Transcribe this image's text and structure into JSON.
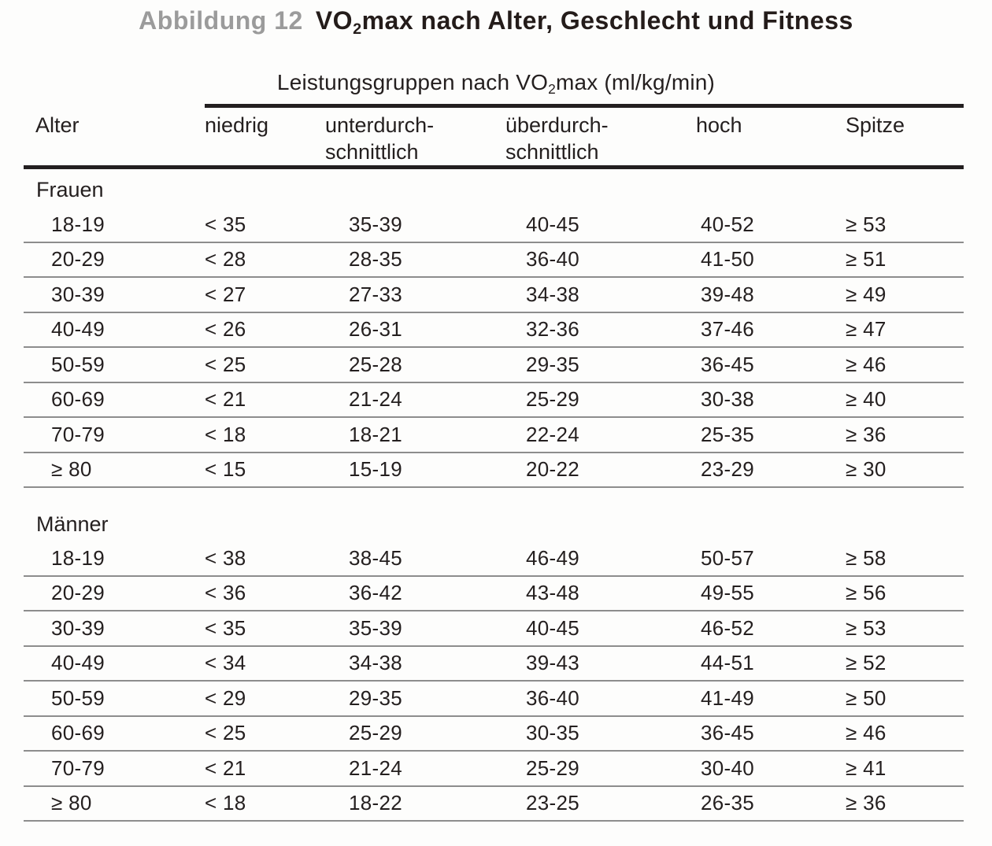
{
  "title": {
    "figure_label": "Abbildung 12",
    "text_pre": "VO",
    "text_sub": "2",
    "text_post": "max nach Alter, Geschlecht und Fitness"
  },
  "span_header": {
    "pre": "Leistungsgruppen nach VO",
    "sub": "2",
    "post": "max (ml/kg/min)"
  },
  "columns": [
    {
      "line1": "Alter",
      "line2": ""
    },
    {
      "line1": "niedrig",
      "line2": ""
    },
    {
      "line1": "unterdurch-",
      "line2": "schnittlich"
    },
    {
      "line1": "überdurch-",
      "line2": "schnittlich"
    },
    {
      "line1": "hoch",
      "line2": ""
    },
    {
      "line1": "Spitze",
      "line2": ""
    }
  ],
  "sections": [
    {
      "label": "Frauen",
      "rows": [
        [
          "18-19",
          "< 35",
          "35-39",
          "40-45",
          "40-52",
          "≥ 53"
        ],
        [
          "20-29",
          "< 28",
          "28-35",
          "36-40",
          "41-50",
          "≥ 51"
        ],
        [
          "30-39",
          "< 27",
          "27-33",
          "34-38",
          "39-48",
          "≥ 49"
        ],
        [
          "40-49",
          "< 26",
          "26-31",
          "32-36",
          "37-46",
          "≥ 47"
        ],
        [
          "50-59",
          "< 25",
          "25-28",
          "29-35",
          "36-45",
          "≥ 46"
        ],
        [
          "60-69",
          "< 21",
          "21-24",
          "25-29",
          "30-38",
          "≥ 40"
        ],
        [
          "70-79",
          "< 18",
          "18-21",
          "22-24",
          "25-35",
          "≥ 36"
        ],
        [
          "≥ 80",
          "< 15",
          "15-19",
          "20-22",
          "23-29",
          "≥ 30"
        ]
      ]
    },
    {
      "label": "Männer",
      "rows": [
        [
          "18-19",
          "< 38",
          "38-45",
          "46-49",
          "50-57",
          "≥ 58"
        ],
        [
          "20-29",
          "< 36",
          "36-42",
          "43-48",
          "49-55",
          "≥ 56"
        ],
        [
          "30-39",
          "< 35",
          "35-39",
          "40-45",
          "46-52",
          "≥ 53"
        ],
        [
          "40-49",
          "< 34",
          "34-38",
          "39-43",
          "44-51",
          "≥ 52"
        ],
        [
          "50-59",
          "< 29",
          "29-35",
          "36-40",
          "41-49",
          "≥ 50"
        ],
        [
          "60-69",
          "< 25",
          "25-29",
          "30-35",
          "36-45",
          "≥ 46"
        ],
        [
          "70-79",
          "< 21",
          "21-24",
          "25-29",
          "30-40",
          "≥ 41"
        ],
        [
          "≥ 80",
          "< 18",
          "18-22",
          "23-25",
          "26-35",
          "≥ 36"
        ]
      ]
    }
  ],
  "colors": {
    "text": "#241f1f",
    "figure_label_gray": "#9b9b9b",
    "heavy_rule": "#231f20",
    "light_rule": "#8d8d8d",
    "background": "#fdfdfc"
  }
}
